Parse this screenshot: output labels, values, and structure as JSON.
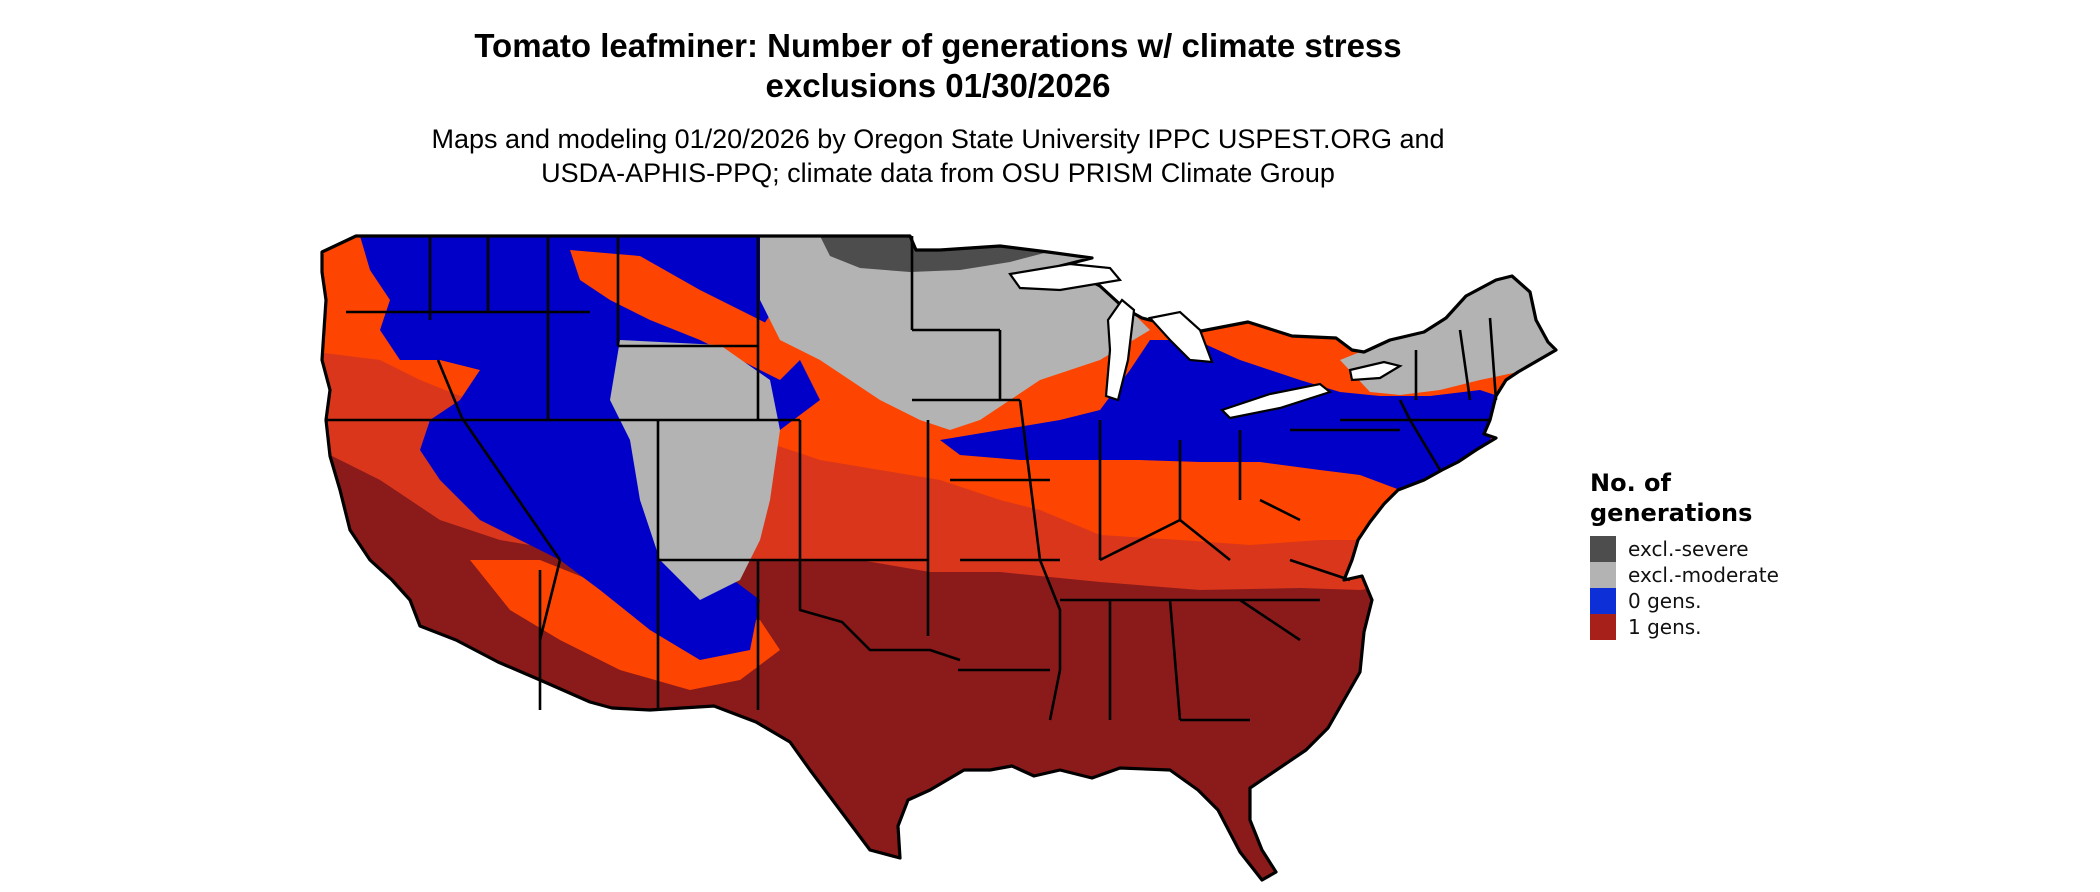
{
  "header": {
    "title_line1": "Tomato leafminer: Number of generations w/ climate stress",
    "title_line2": "exclusions 01/30/2026",
    "subtitle_line1": "Maps and modeling 01/20/2026 by Oregon State University IPPC USPEST.ORG and",
    "subtitle_line2": "USDA-APHIS-PPQ; climate data from OSU PRISM Climate Group"
  },
  "legend": {
    "title_line1": "No. of",
    "title_line2": "generations",
    "items": [
      {
        "label": "excl.-severe",
        "color": "#4d4d4d"
      },
      {
        "label": "excl.-moderate",
        "color": "#b3b3b3"
      },
      {
        "label": "0 gens.",
        "color": "#0c2fd8"
      },
      {
        "label": "1 gens.",
        "color": "#a8201a"
      }
    ]
  },
  "map": {
    "region": "Contiguous United States",
    "colors": {
      "excl_severe": "#4d4d4d",
      "excl_moderate": "#b3b3b3",
      "zero_gens": "#0000c8",
      "transition_orange": "#fd4400",
      "transition_mid": "#d9361c",
      "one_gen": "#8b1a1a",
      "border": "#000000"
    }
  }
}
